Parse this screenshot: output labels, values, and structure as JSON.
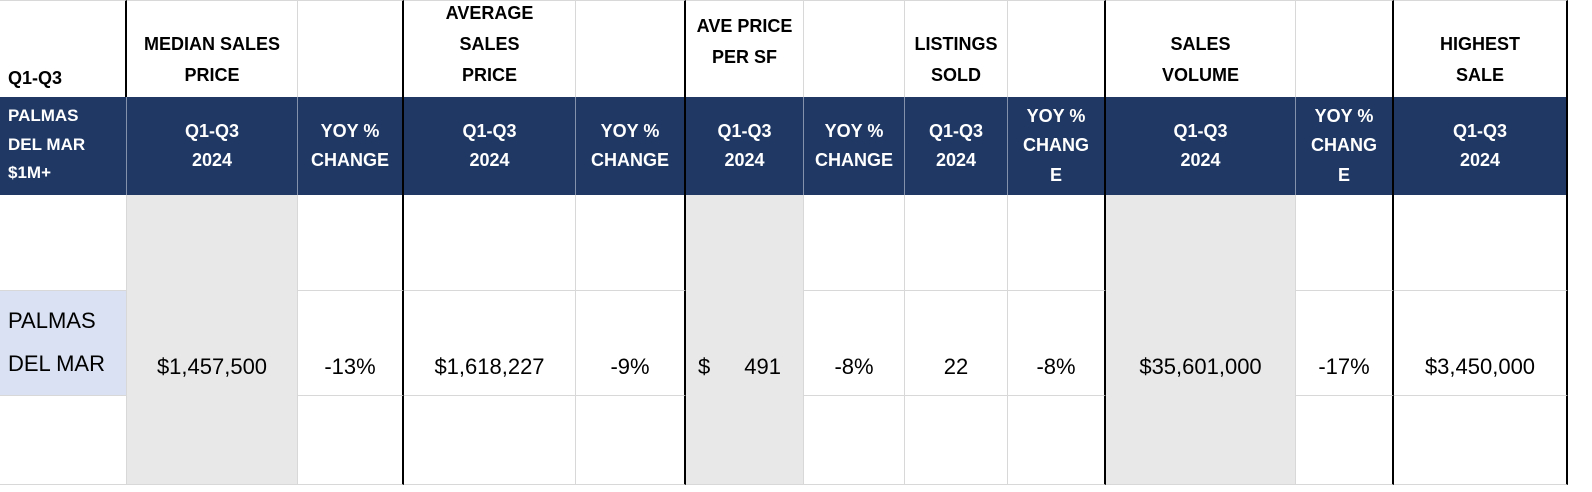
{
  "table": {
    "corner_label": "Q1-Q3",
    "row_band": {
      "header": "PALMAS\nDEL MAR\n$1M+",
      "row_label": "PALMAS\nDEL MAR"
    },
    "columns": [
      {
        "group": "MEDIAN SALES\nPRICE",
        "sub": "Q1-Q3\n2024",
        "value": "$1,457,500"
      },
      {
        "group": "",
        "sub": "YOY %\nCHANGE",
        "value": "-13%"
      },
      {
        "group": "AVERAGE\nSALES\nPRICE",
        "sub": "Q1-Q3\n2024",
        "value": "$1,618,227"
      },
      {
        "group": "",
        "sub": "YOY %\nCHANGE",
        "value": "-9%"
      },
      {
        "group": "AVE PRICE\nPER SF",
        "sub": "Q1-Q3\n2024",
        "currency": "$",
        "amount": "491"
      },
      {
        "group": "",
        "sub": "YOY %\nCHANGE",
        "value": "-8%"
      },
      {
        "group": "LISTINGS\nSOLD",
        "sub": "Q1-Q3\n2024",
        "value": "22"
      },
      {
        "group": "",
        "sub": "YOY %\nCHANG\nE",
        "value": "-8%"
      },
      {
        "group": "SALES\nVOLUME",
        "sub": "Q1-Q3\n2024",
        "value": "$35,601,000"
      },
      {
        "group": "",
        "sub": "YOY %\nCHANG\nE",
        "value": "-17%"
      },
      {
        "group": "HIGHEST\nSALE",
        "sub": "Q1-Q3\n2024",
        "value": "$3,450,000"
      }
    ],
    "colors": {
      "header_navy": "#1F3864",
      "shaded_column": "#E9E8E8",
      "row_label_fill": "#D9E1F2"
    }
  }
}
